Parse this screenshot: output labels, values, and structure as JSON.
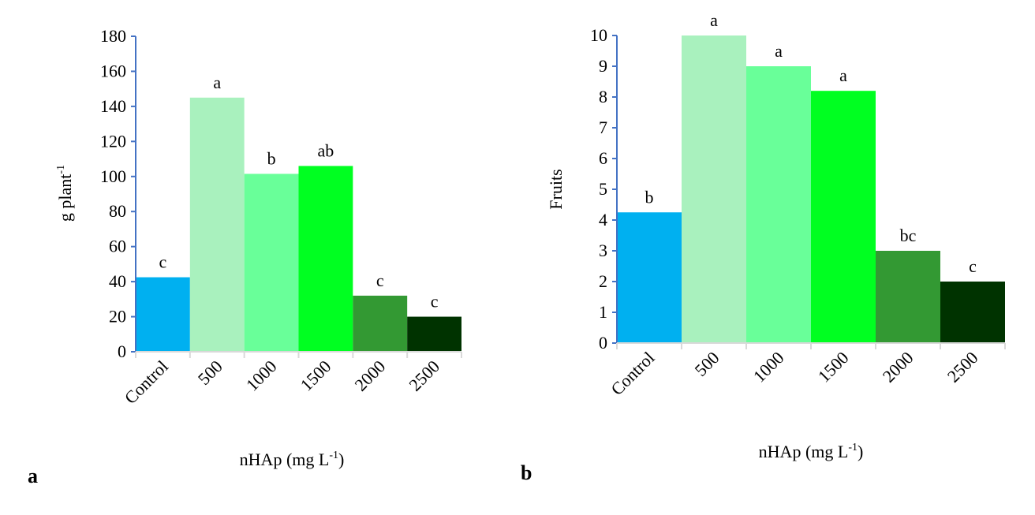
{
  "chart_data": [
    {
      "type": "bar",
      "panel_label": "a",
      "categories": [
        "Control",
        "500",
        "1000",
        "1500",
        "2000",
        "2500"
      ],
      "values": [
        42.5,
        145,
        101.5,
        106,
        32,
        20
      ],
      "significance": [
        "c",
        "a",
        "b",
        "ab",
        "c",
        "c"
      ],
      "colors": [
        "#00B0F0",
        "#A9F1BE",
        "#69FF99",
        "#00FF21",
        "#339933",
        "#003300"
      ],
      "xlabel": "nHAp (mg L",
      "xlabel_sup": "-1",
      "xlabel_tail": ")",
      "ylabel": "g  plant",
      "ylabel_sup": "-1",
      "ylim": [
        0,
        180
      ],
      "yticks": [
        0,
        20,
        40,
        60,
        80,
        100,
        120,
        140,
        160,
        180
      ],
      "grid": false,
      "legend": "none"
    },
    {
      "type": "bar",
      "panel_label": "b",
      "categories": [
        "Control",
        "500",
        "1000",
        "1500",
        "2000",
        "2500"
      ],
      "values": [
        4.25,
        10,
        9,
        8.2,
        3,
        2
      ],
      "significance": [
        "b",
        "a",
        "a",
        "a",
        "bc",
        "c"
      ],
      "colors": [
        "#00B0F0",
        "#A9F1BE",
        "#69FF99",
        "#00FF21",
        "#339933",
        "#003300"
      ],
      "xlabel": "nHAp (mg L",
      "xlabel_sup": "-1",
      "xlabel_tail": ")",
      "ylabel": "Fruits",
      "ylabel_sup": "",
      "ylim": [
        0,
        10
      ],
      "yticks": [
        0,
        1,
        2,
        3,
        4,
        5,
        6,
        7,
        8,
        9,
        10
      ],
      "grid": false,
      "legend": "none"
    }
  ]
}
